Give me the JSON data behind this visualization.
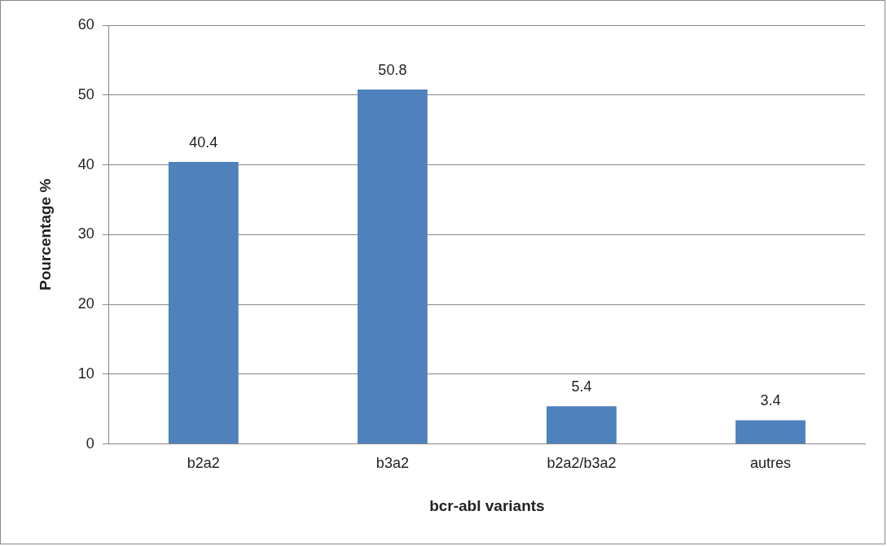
{
  "chart_data": {
    "type": "bar",
    "xlabel": "bcr-abl variants",
    "ylabel": "Pourcentage %",
    "categories": [
      "b2a2",
      "b3a2",
      "b2a2/b3a2",
      "autres"
    ],
    "values": [
      40.4,
      50.8,
      5.4,
      3.4
    ],
    "color": "#4f81bd",
    "ylim": [
      0,
      60
    ],
    "yticks": [
      0,
      10,
      20,
      30,
      40,
      50,
      60
    ],
    "grid": "y",
    "legend": false,
    "data_labels": true
  }
}
